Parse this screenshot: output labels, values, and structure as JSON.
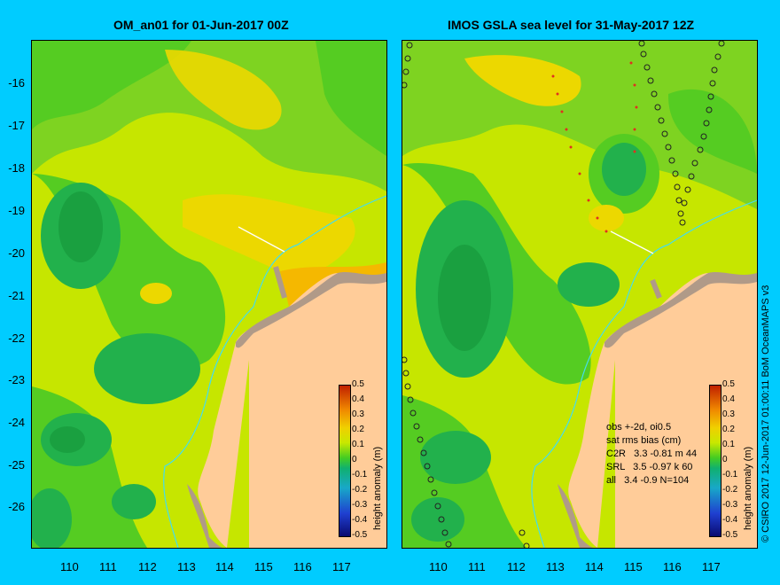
{
  "left_panel": {
    "title": "OM_an01 for 01-Jun-2017 00Z"
  },
  "right_panel": {
    "title": "IMOS GSLA sea level  for 31-May-2017 12Z"
  },
  "y_ticks": [
    "-16",
    "-17",
    "-18",
    "-19",
    "-20",
    "-21",
    "-22",
    "-23",
    "-24",
    "-25",
    "-26"
  ],
  "x_ticks": [
    "110",
    "111",
    "112",
    "113",
    "114",
    "115",
    "116",
    "117"
  ],
  "colorbar": {
    "label": "height anomaly (m)",
    "ticks": [
      "0.5",
      "0.4",
      "0.3",
      "0.2",
      "0.1",
      "0",
      "-0.1",
      "-0.2",
      "-0.3",
      "-0.4",
      "-0.5"
    ]
  },
  "stats": {
    "line1": "obs +-2d, oi0.5",
    "line2": "sat rms bias (cm)",
    "line3": "C2R   3.3 -0.81 m 44",
    "line4": "SRL   3.5 -0.97 k 60",
    "line5": "all   3.4 -0.9 N=104"
  },
  "credit": "© CSIRO 2017  12-Jun-2017 01:00:11 BoM OceanMAPS v3",
  "colors": {
    "background": "#00ccff",
    "land": "#ffcc99",
    "coast": "#b09a88",
    "green": "#55cc22",
    "dark_green": "#22b14c",
    "yellow_green": "#c6e600",
    "yellow": "#ecd800",
    "orange": "#f5b800",
    "isobath": "#44ddee"
  }
}
